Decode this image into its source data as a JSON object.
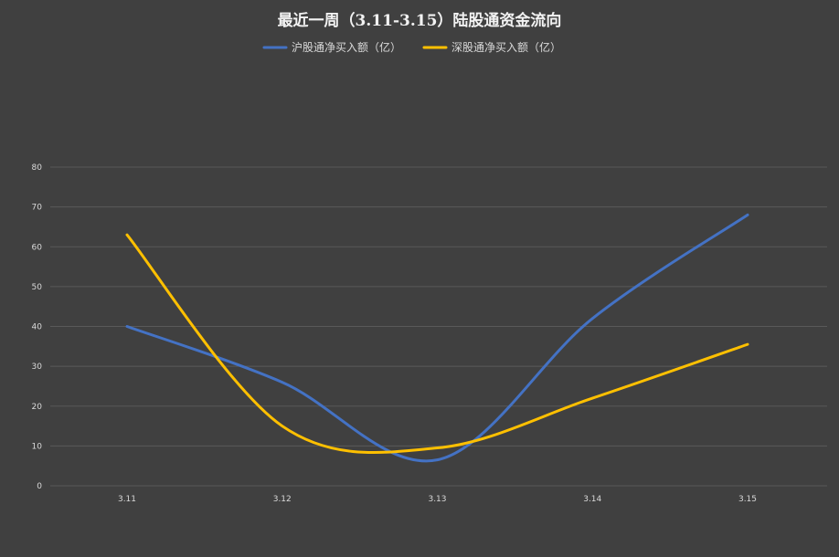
{
  "chart_data": {
    "type": "line",
    "title": "最近一周（3.11-3.15）陆股通资金流向",
    "categories": [
      "3.11",
      "3.12",
      "3.13",
      "3.14",
      "3.15"
    ],
    "series": [
      {
        "name": "沪股通净买入额（亿）",
        "color": "#4472C4",
        "values": [
          40,
          26,
          6.5,
          42,
          68
        ]
      },
      {
        "name": "深股通净买入额（亿）",
        "color": "#FFC000",
        "values": [
          63,
          15,
          9.5,
          22,
          35.5
        ]
      }
    ],
    "ylim": [
      0,
      80
    ],
    "yticks": [
      0,
      10,
      20,
      30,
      40,
      50,
      60,
      70,
      80
    ],
    "grid": true,
    "legend": "top",
    "smooth": true,
    "background": "#404040"
  }
}
